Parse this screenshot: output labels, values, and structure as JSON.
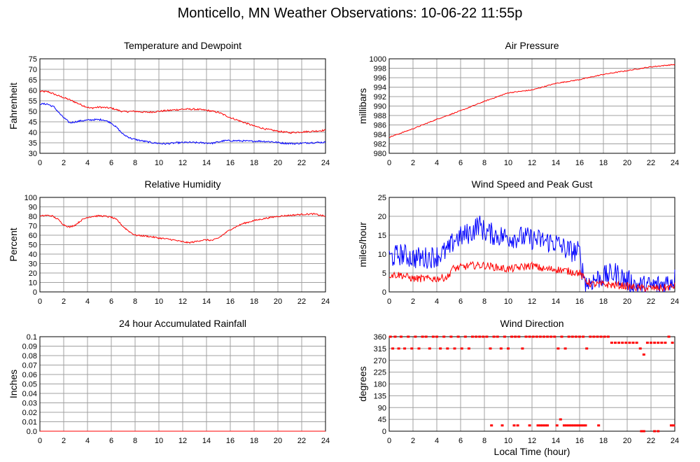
{
  "page_title": "Monticello, MN Weather Observations: 10-06-22 11:55p",
  "colors": {
    "red": "#ff0000",
    "blue": "#0000ff",
    "grid": "#a0a0a0",
    "frame": "#000000"
  },
  "chart_data": [
    {
      "id": "temperature",
      "type": "line",
      "title": "Temperature and Dewpoint",
      "ylabel": "Fahrenheit",
      "xlabel": "",
      "xlim": [
        0,
        24
      ],
      "ylim": [
        30,
        75
      ],
      "xticks": [
        0,
        2,
        4,
        6,
        8,
        10,
        12,
        14,
        16,
        18,
        20,
        22,
        24
      ],
      "yticks": [
        30,
        35,
        40,
        45,
        50,
        55,
        60,
        65,
        70,
        75
      ],
      "grid": true,
      "series": [
        {
          "color": "#ff0000",
          "noise": 0.4,
          "x": [
            0,
            0.7,
            1.5,
            2.5,
            3.5,
            4.2,
            5,
            6,
            7,
            8,
            9,
            10,
            11,
            12,
            13,
            14,
            15,
            16,
            17,
            18,
            19,
            20,
            21,
            22,
            23,
            24
          ],
          "y": [
            59.5,
            59.3,
            57.5,
            55.5,
            53,
            51.5,
            52,
            51.5,
            49.8,
            50,
            49.5,
            50,
            50.5,
            51,
            51,
            50.5,
            49.5,
            47,
            45,
            43,
            41.5,
            40.5,
            39.8,
            40.2,
            40.5,
            41
          ]
        },
        {
          "color": "#0000ff",
          "noise": 0.4,
          "x": [
            0,
            0.6,
            1.2,
            1.8,
            2.5,
            3.5,
            4.5,
            5.3,
            6,
            6.5,
            7,
            7.7,
            8.5,
            9.5,
            10.5,
            11.5,
            12.5,
            13.5,
            14.5,
            15.5,
            16.5,
            17.5,
            18.5,
            19.5,
            20.5,
            21.5,
            22.5,
            23.5,
            24
          ],
          "y": [
            53.5,
            53.5,
            52,
            48,
            44.5,
            45.5,
            46,
            46,
            44.5,
            42,
            39,
            37,
            36,
            35,
            34.5,
            35,
            35.2,
            35,
            34.8,
            36,
            36,
            35.8,
            35.8,
            35.5,
            34.8,
            34.6,
            35,
            35.2,
            35.2
          ]
        }
      ]
    },
    {
      "id": "pressure",
      "type": "line",
      "title": "Air Pressure",
      "ylabel": "millibars",
      "xlabel": "",
      "xlim": [
        0,
        24
      ],
      "ylim": [
        980,
        1000
      ],
      "xticks": [
        0,
        2,
        4,
        6,
        8,
        10,
        12,
        14,
        16,
        18,
        20,
        22,
        24
      ],
      "yticks": [
        980,
        982,
        984,
        986,
        988,
        990,
        992,
        994,
        996,
        998,
        1000
      ],
      "grid": true,
      "series": [
        {
          "color": "#ff0000",
          "noise": 0.1,
          "x": [
            0,
            2,
            4,
            6,
            8,
            10,
            12,
            14,
            16,
            18,
            20,
            22,
            24
          ],
          "y": [
            983.4,
            985.2,
            987.2,
            989,
            991,
            992.8,
            993.4,
            994.8,
            995.6,
            996.7,
            997.5,
            998.3,
            998.8
          ]
        }
      ]
    },
    {
      "id": "humidity",
      "type": "line",
      "title": "Relative Humidity",
      "ylabel": "Percent",
      "xlabel": "",
      "xlim": [
        0,
        24
      ],
      "ylim": [
        0,
        100
      ],
      "xticks": [
        0,
        2,
        4,
        6,
        8,
        10,
        12,
        14,
        16,
        18,
        20,
        22,
        24
      ],
      "yticks": [
        0,
        10,
        20,
        30,
        40,
        50,
        60,
        70,
        80,
        90,
        100
      ],
      "grid": true,
      "series": [
        {
          "color": "#ff0000",
          "noise": 0.8,
          "x": [
            0,
            0.5,
            1,
            1.5,
            2,
            2.5,
            3,
            3.5,
            4,
            4.5,
            5,
            5.5,
            6,
            6.5,
            7,
            7.5,
            8,
            9,
            10,
            11,
            12,
            12.5,
            13,
            13.5,
            14,
            14.5,
            15,
            16,
            17,
            18,
            19,
            20,
            21,
            22,
            23,
            24
          ],
          "y": [
            80,
            81,
            80.5,
            77,
            71,
            68.5,
            71,
            76,
            79,
            80,
            80.5,
            80,
            79,
            76,
            69,
            64,
            60,
            59,
            57,
            55.5,
            53,
            52,
            53,
            54.5,
            55,
            54.5,
            57,
            66,
            72,
            75.5,
            78,
            80,
            81,
            82,
            82.5,
            80
          ]
        }
      ]
    },
    {
      "id": "wind-speed",
      "type": "line",
      "title": "Wind Speed and Peak Gust",
      "ylabel": "miles/hour",
      "xlabel": "",
      "xlim": [
        0,
        24
      ],
      "ylim": [
        0,
        25
      ],
      "xticks": [
        0,
        2,
        4,
        6,
        8,
        10,
        12,
        14,
        16,
        18,
        20,
        22,
        24
      ],
      "yticks": [
        0,
        5,
        10,
        15,
        20,
        25
      ],
      "grid": true,
      "series": [
        {
          "color": "#0000ff",
          "noise": 3.0,
          "x": [
            0,
            1,
            2,
            3,
            4,
            5,
            5.5,
            6,
            7,
            7.5,
            8,
            9,
            10,
            11,
            12,
            13,
            14,
            15,
            16,
            16.2,
            16.6,
            17,
            18,
            19,
            20,
            21,
            22,
            23,
            24
          ],
          "y": [
            9,
            10,
            9,
            9,
            9.5,
            11,
            14,
            14.5,
            16,
            18,
            16,
            15,
            14.5,
            14.5,
            14,
            13.5,
            13,
            11,
            10.5,
            6,
            2,
            3,
            4,
            5,
            3,
            1.5,
            1.5,
            2,
            3.5
          ]
        },
        {
          "color": "#ff0000",
          "noise": 1.0,
          "x": [
            0,
            1,
            2,
            3,
            4,
            5,
            5.2,
            6,
            7,
            8,
            9,
            10,
            11,
            12,
            13,
            14,
            15,
            16,
            16.5,
            17,
            18,
            19,
            20,
            21,
            22,
            23,
            24
          ],
          "y": [
            4.5,
            4.5,
            3.5,
            3.5,
            3.5,
            4,
            6,
            6.5,
            7,
            7,
            6.5,
            6,
            6.5,
            7,
            6,
            6,
            5.5,
            5,
            3,
            2,
            2,
            1.8,
            1.5,
            1,
            1,
            1,
            1.5
          ]
        }
      ]
    },
    {
      "id": "rainfall",
      "type": "line",
      "title": "24 hour Accumulated Rainfall",
      "ylabel": "Inches",
      "xlabel": "",
      "xlim": [
        0,
        24
      ],
      "ylim": [
        0,
        0.1
      ],
      "xticks": [
        0,
        2,
        4,
        6,
        8,
        10,
        12,
        14,
        16,
        18,
        20,
        22,
        24
      ],
      "yticks": [
        "0.0",
        "0.01",
        "0.02",
        "0.03",
        "0.04",
        "0.05",
        "0.06",
        "0.07",
        "0.08",
        "0.09",
        "0.1"
      ],
      "grid": true,
      "series": [
        {
          "color": "#ff0000",
          "noise": 0,
          "x": [
            0,
            24
          ],
          "y": [
            0,
            0
          ]
        }
      ]
    },
    {
      "id": "wind-direction",
      "type": "scatter",
      "title": "Wind Direction",
      "ylabel": "degrees",
      "xlabel": "Local Time (hour)",
      "xlim": [
        0,
        24
      ],
      "ylim": [
        0,
        360
      ],
      "xticks": [
        0,
        2,
        4,
        6,
        8,
        10,
        12,
        14,
        16,
        18,
        20,
        22,
        24
      ],
      "yticks": [
        0,
        45,
        90,
        135,
        180,
        225,
        270,
        315,
        360
      ],
      "grid": true,
      "series": [
        {
          "color": "#ff0000",
          "x": [
            0.1,
            0.3,
            0.5,
            0.8,
            1.0,
            1.3,
            1.6,
            1.9,
            2.2,
            2.5,
            2.8,
            3.1,
            3.4,
            3.7,
            4.0,
            4.3,
            4.6,
            4.9,
            5.2,
            5.5,
            5.8,
            6.1,
            6.4,
            6.7,
            7.0,
            7.3,
            7.6,
            7.9,
            8.2,
            8.5,
            8.8,
            9.1,
            9.4,
            9.7,
            10.0,
            10.3,
            10.6,
            10.9,
            11.2,
            11.5,
            11.8,
            12.1,
            12.4,
            12.7,
            13.0,
            13.3,
            13.6,
            13.9,
            14.2,
            14.5,
            14.8,
            15.1,
            15.4,
            15.7,
            16.0,
            16.3,
            16.6,
            16.9,
            17.2,
            17.5,
            17.8,
            18.1,
            18.4,
            18.7,
            19.0,
            19.3,
            19.6,
            19.9,
            20.2,
            20.5,
            20.8,
            21.1,
            21.4,
            21.7,
            22.0,
            22.3,
            22.6,
            22.9,
            23.2,
            23.5,
            23.8
          ],
          "y": [
            360,
            315,
            360,
            315,
            360,
            315,
            360,
            315,
            360,
            315,
            360,
            360,
            315,
            360,
            360,
            315,
            360,
            315,
            360,
            315,
            360,
            315,
            360,
            315,
            360,
            360,
            360,
            360,
            360,
            315,
            360,
            360,
            315,
            360,
            315,
            360,
            360,
            360,
            315,
            360,
            360,
            360,
            360,
            360,
            360,
            360,
            360,
            360,
            315,
            360,
            315,
            360,
            360,
            360,
            360,
            360,
            315,
            360,
            360,
            360,
            360,
            360,
            360,
            337,
            337,
            337,
            337,
            337,
            337,
            337,
            337,
            315,
            292,
            337,
            337,
            337,
            337,
            337,
            337,
            360,
            337
          ]
        },
        {
          "color": "#ff0000",
          "x": [
            8.6,
            9.5,
            10.5,
            10.8,
            11.8,
            12.5,
            12.7,
            12.9,
            13.1,
            13.3,
            14.1,
            14.4,
            14.7,
            14.9,
            15.1,
            15.3,
            15.5,
            15.7,
            15.9,
            16.1,
            16.3,
            16.5,
            17.6,
            21.2,
            21.4,
            22.3,
            22.6,
            23.7,
            23.9
          ],
          "y": [
            22,
            22,
            22,
            22,
            22,
            22,
            22,
            22,
            22,
            22,
            22,
            45,
            22,
            22,
            22,
            22,
            22,
            22,
            22,
            22,
            22,
            22,
            22,
            0,
            0,
            0,
            0,
            22,
            22
          ]
        }
      ]
    }
  ]
}
